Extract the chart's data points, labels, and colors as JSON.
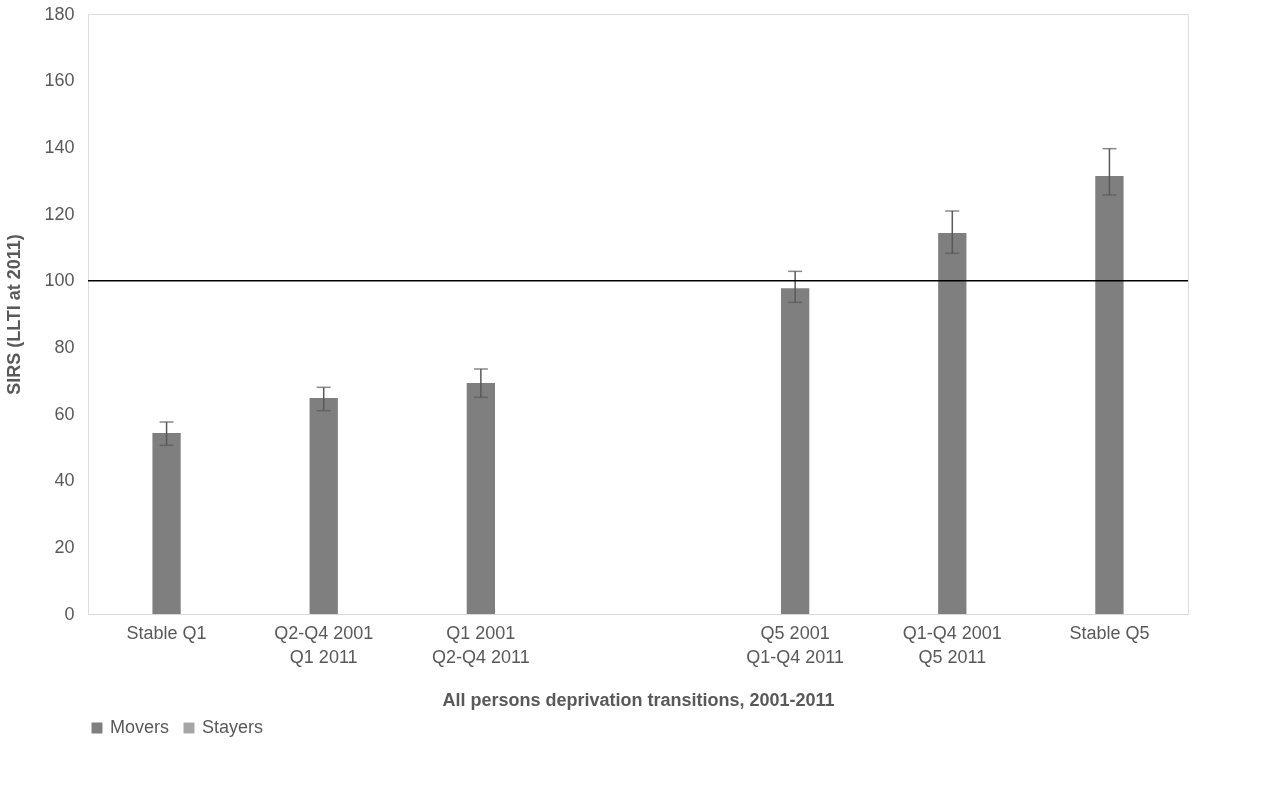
{
  "chart_data": {
    "type": "bar",
    "xlabel": "All persons deprivation transitions, 2001-2011",
    "ylabel": "SIRS (LLTI at 2011)",
    "categories": [
      "Stable Q1",
      "Q2-Q4 2001\nQ1 2011",
      "Q1 2001\nQ2-Q4 2011",
      null,
      "Q5 2001\nQ1-Q4 2011",
      "Q1-Q4 2001\nQ5 2011",
      "Stable Q5"
    ],
    "series": [
      {
        "name": "Movers",
        "color": "#7f7f7f",
        "values": [
          54.3,
          64.8,
          69.3,
          null,
          97.7,
          114.3,
          131.4
        ],
        "errors": [
          [
            50.6,
            57.6
          ],
          [
            61,
            68
          ],
          [
            65,
            73.5
          ],
          null,
          [
            93.5,
            102.8
          ],
          [
            108.2,
            120.9
          ],
          [
            125.7,
            139.6
          ]
        ]
      },
      {
        "name": "Stayers",
        "color": "#a5a5a5",
        "values": [
          null,
          null,
          null,
          null,
          null,
          null,
          null
        ]
      }
    ],
    "ylim": [
      0,
      180
    ],
    "yticks": [
      0,
      20,
      40,
      60,
      80,
      100,
      120,
      140,
      160,
      180
    ],
    "ref_lines": [
      {
        "axis": "y",
        "value": 100,
        "color": "#000000"
      }
    ],
    "grid": false,
    "legend": "bottom"
  }
}
